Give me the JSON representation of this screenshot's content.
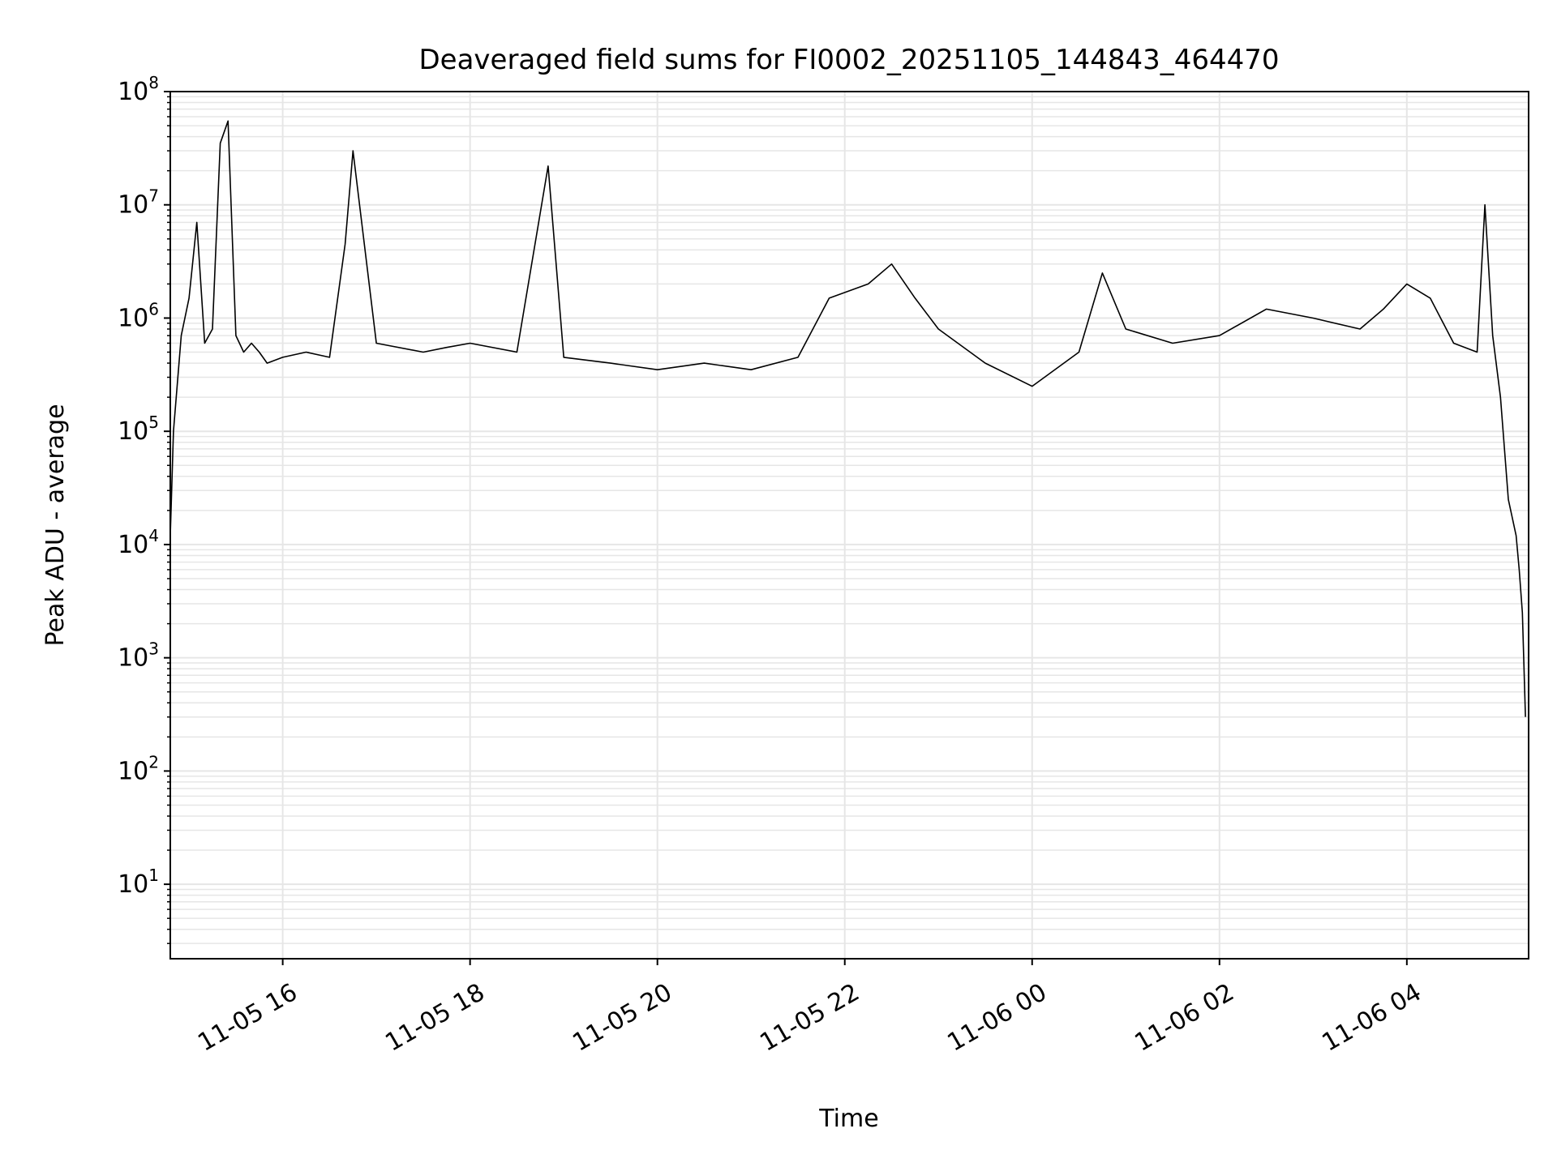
{
  "chart_data": {
    "type": "line",
    "title": "Deaveraged field sums for FI0002_20251105_144843_464470",
    "xlabel": "Time",
    "ylabel": "Peak ADU - average",
    "yscale": "log",
    "grid": true,
    "line_color": "#000000",
    "grid_color": "#e6e6e6",
    "xlim": [
      "2025-11-05 14:48",
      "2025-11-06 05:18"
    ],
    "ylim": [
      2.2,
      100000000
    ],
    "xticks": [
      {
        "time": "2025-11-05 16:00",
        "label": "11-05 16"
      },
      {
        "time": "2025-11-05 18:00",
        "label": "11-05 18"
      },
      {
        "time": "2025-11-05 20:00",
        "label": "11-05 20"
      },
      {
        "time": "2025-11-05 22:00",
        "label": "11-05 22"
      },
      {
        "time": "2025-11-06 00:00",
        "label": "11-06 00"
      },
      {
        "time": "2025-11-06 02:00",
        "label": "11-06 02"
      },
      {
        "time": "2025-11-06 04:00",
        "label": "11-06 04"
      }
    ],
    "yticks": [
      {
        "value": 10,
        "base": "10",
        "exp": "1"
      },
      {
        "value": 100,
        "base": "10",
        "exp": "2"
      },
      {
        "value": 1000,
        "base": "10",
        "exp": "3"
      },
      {
        "value": 10000,
        "base": "10",
        "exp": "4"
      },
      {
        "value": 100000,
        "base": "10",
        "exp": "5"
      },
      {
        "value": 1000000,
        "base": "10",
        "exp": "6"
      },
      {
        "value": 10000000,
        "base": "10",
        "exp": "7"
      },
      {
        "value": 100000000,
        "base": "10",
        "exp": "8"
      }
    ],
    "series": [
      {
        "x": [
          "2025-11-05 14:48",
          "2025-11-05 14:50",
          "2025-11-05 14:55",
          "2025-11-05 15:00",
          "2025-11-05 15:05",
          "2025-11-05 15:10",
          "2025-11-05 15:15",
          "2025-11-05 15:20",
          "2025-11-05 15:25",
          "2025-11-05 15:30",
          "2025-11-05 15:35",
          "2025-11-05 15:40",
          "2025-11-05 15:45",
          "2025-11-05 15:50",
          "2025-11-05 16:00",
          "2025-11-05 16:15",
          "2025-11-05 16:30",
          "2025-11-05 16:40",
          "2025-11-05 16:45",
          "2025-11-05 17:00",
          "2025-11-05 17:30",
          "2025-11-05 17:45",
          "2025-11-05 18:00",
          "2025-11-05 18:30",
          "2025-11-05 18:50",
          "2025-11-05 19:00",
          "2025-11-05 19:30",
          "2025-11-05 20:00",
          "2025-11-05 20:30",
          "2025-11-05 21:00",
          "2025-11-05 21:30",
          "2025-11-05 21:50",
          "2025-11-05 22:15",
          "2025-11-05 22:30",
          "2025-11-05 22:45",
          "2025-11-05 23:00",
          "2025-11-05 23:30",
          "2025-11-06 00:00",
          "2025-11-06 00:30",
          "2025-11-06 00:45",
          "2025-11-06 01:00",
          "2025-11-06 01:30",
          "2025-11-06 02:00",
          "2025-11-06 02:30",
          "2025-11-06 03:00",
          "2025-11-06 03:30",
          "2025-11-06 03:45",
          "2025-11-06 04:00",
          "2025-11-06 04:15",
          "2025-11-06 04:30",
          "2025-11-06 04:45",
          "2025-11-06 04:50",
          "2025-11-06 04:55",
          "2025-11-06 05:00",
          "2025-11-06 05:05",
          "2025-11-06 05:10",
          "2025-11-06 05:12",
          "2025-11-06 05:14",
          "2025-11-06 05:16"
        ],
        "y": [
          12000,
          100000,
          700000,
          1500000,
          7000000,
          600000,
          800000,
          35000000,
          55000000,
          700000,
          500000,
          600000,
          500000,
          400000,
          450000,
          500000,
          450000,
          4500000,
          30000000,
          600000,
          500000,
          550000,
          600000,
          500000,
          22000000,
          450000,
          400000,
          350000,
          400000,
          350000,
          450000,
          1500000,
          2000000,
          3000000,
          1500000,
          800000,
          400000,
          250000,
          500000,
          2500000,
          800000,
          600000,
          700000,
          1200000,
          1000000,
          800000,
          1200000,
          2000000,
          1500000,
          600000,
          500000,
          10000000,
          700000,
          200000,
          25000,
          12000,
          6000,
          2500,
          300
        ]
      }
    ]
  }
}
